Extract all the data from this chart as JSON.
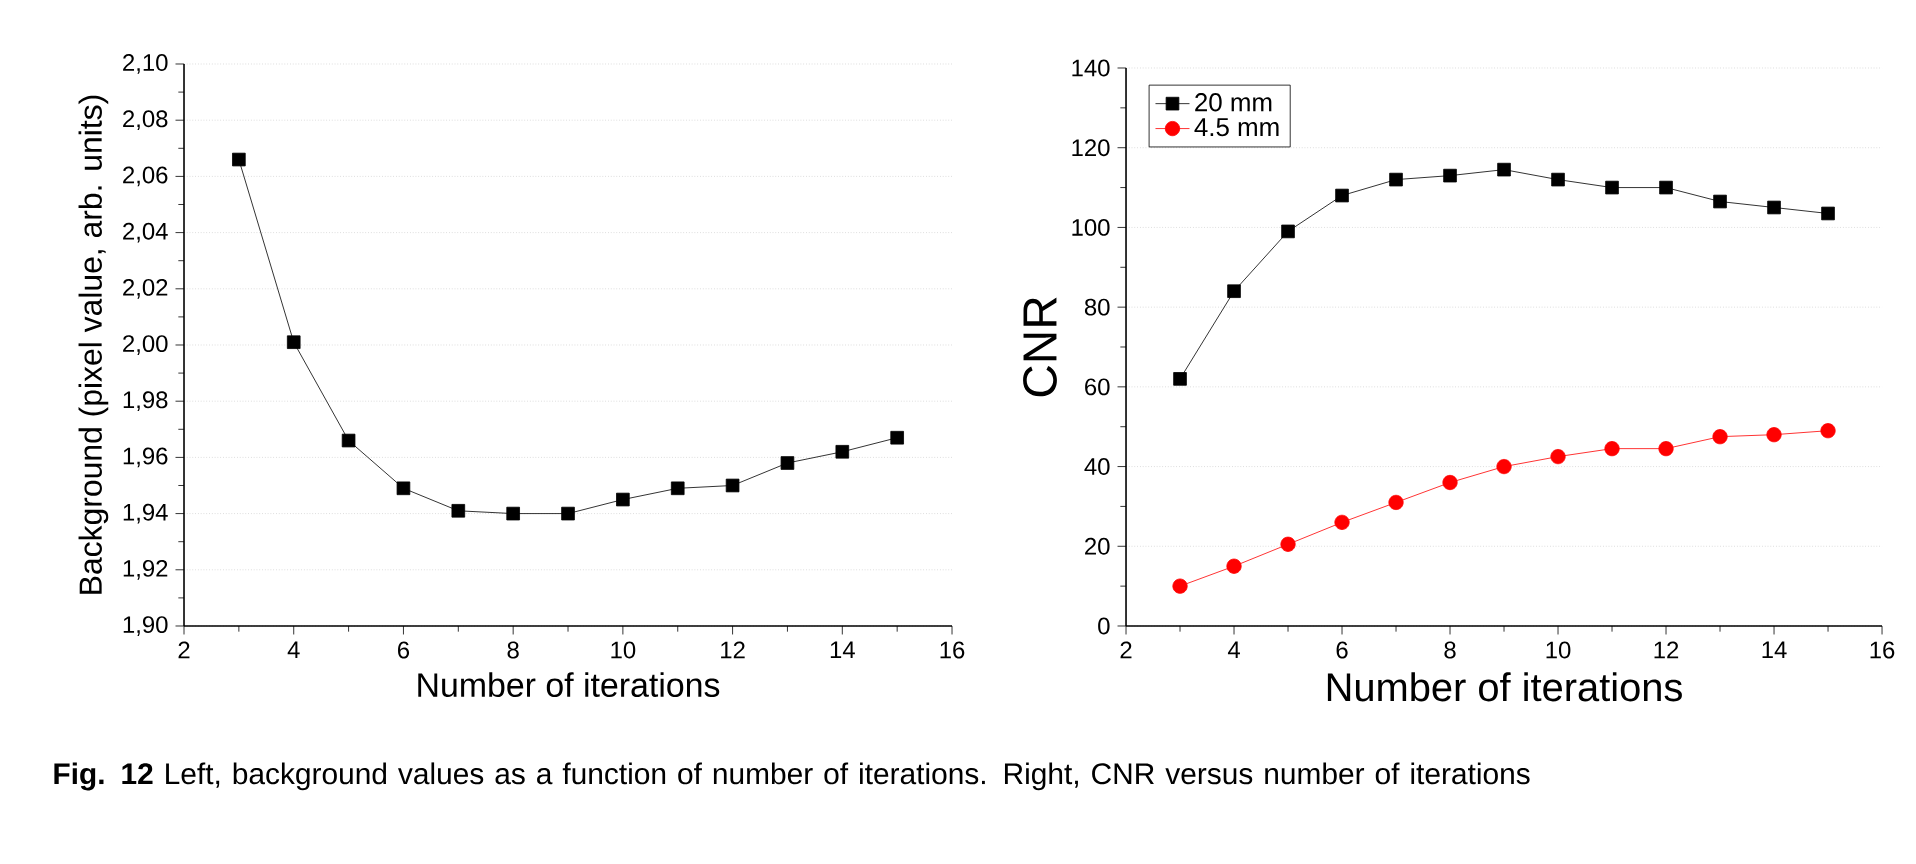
{
  "chart_data": [
    {
      "type": "line",
      "xlabel": "Number of iterations",
      "ylabel": "Background (pixel value, arb. units)",
      "x": [
        3,
        4,
        5,
        6,
        7,
        8,
        9,
        10,
        11,
        12,
        13,
        14,
        15
      ],
      "series": [
        {
          "color": "#000000",
          "values": [
            2.066,
            2.001,
            1.966,
            1.949,
            1.941,
            1.94,
            1.94,
            1.945,
            1.949,
            1.95,
            1.958,
            1.962,
            1.967
          ]
        }
      ],
      "xlim": [
        2,
        16
      ],
      "xticks": [
        2,
        4,
        6,
        8,
        10,
        12,
        14,
        16
      ],
      "ylim": [
        1.9,
        2.1
      ],
      "yticks": [
        {
          "value": 1.9,
          "label": "1,90"
        },
        {
          "value": 1.92,
          "label": "1,92"
        },
        {
          "value": 1.94,
          "label": "1,94"
        },
        {
          "value": 1.96,
          "label": "1,96"
        },
        {
          "value": 1.98,
          "label": "1,98"
        },
        {
          "value": 2.0,
          "label": "2,00"
        },
        {
          "value": 2.02,
          "label": "2,02"
        },
        {
          "value": 2.04,
          "label": "2,04"
        },
        {
          "value": 2.06,
          "label": "2,06"
        },
        {
          "value": 2.08,
          "label": "2,08"
        },
        {
          "value": 2.1,
          "label": "2,10"
        }
      ],
      "grid": "y",
      "marker": "square",
      "line_style": "solid",
      "annotations": [
        "**Fig. 12** Left, background values as a function of number of iterations. Right, CNR versus number of iterations"
      ]
    },
    {
      "type": "line",
      "xlabel": "Number of iterations",
      "ylabel": "CNR",
      "x": [
        3,
        4,
        5,
        6,
        7,
        8,
        9,
        10,
        11,
        12,
        13,
        14,
        15
      ],
      "series": [
        {
          "name": "20 mm",
          "color": "#000000",
          "marker": "square",
          "values": [
            62,
            84,
            99,
            108,
            112,
            113,
            114.5,
            112,
            110,
            110,
            106.5,
            105,
            103.5
          ]
        },
        {
          "name": "4.5 mm",
          "color": "#ff0000",
          "marker": "circle",
          "values": [
            10,
            15,
            20.5,
            26,
            31,
            36,
            40,
            42.5,
            44.5,
            44.5,
            47.5,
            48,
            49
          ]
        }
      ],
      "xlim": [
        2,
        16
      ],
      "xticks": [
        2,
        4,
        6,
        8,
        10,
        12,
        14,
        16
      ],
      "ylim": [
        0,
        140
      ],
      "yticks": [
        0,
        20,
        40,
        60,
        80,
        100,
        120,
        140
      ],
      "grid": "y",
      "legend": "top left",
      "line_style": "solid"
    }
  ]
}
